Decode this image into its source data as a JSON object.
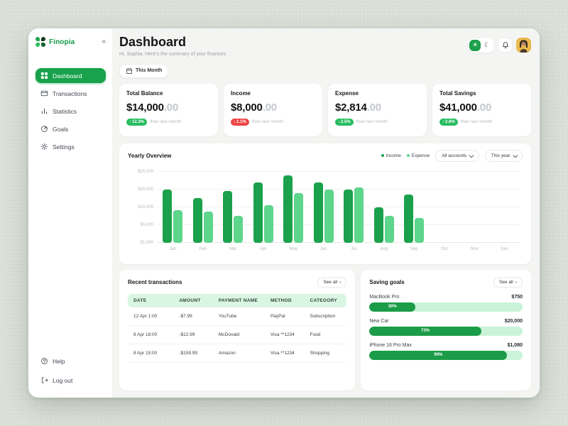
{
  "brand": {
    "name": "Finopia"
  },
  "icons": {
    "collapse": "«",
    "sun": "☀",
    "moon": "☾",
    "see_all_arrow": "›"
  },
  "sidebar": {
    "items": [
      {
        "label": "Dashboard",
        "active": true
      },
      {
        "label": "Transactions",
        "active": false
      },
      {
        "label": "Statistics",
        "active": false
      },
      {
        "label": "Goals",
        "active": false
      },
      {
        "label": "Settings",
        "active": false
      }
    ],
    "footer_items": [
      {
        "label": "Help"
      },
      {
        "label": "Log out"
      }
    ]
  },
  "header": {
    "title": "Dashboard",
    "subtitle": "Hi, Sophia. Here's the summary of your finances.",
    "period_button": "This Month"
  },
  "stats": [
    {
      "label": "Total Balance",
      "value_main": "$14,000",
      "value_cents": ".00",
      "delta_arrow": "↑",
      "delta": "12.3%",
      "delta_color": "green",
      "compare": "than last month"
    },
    {
      "label": "Income",
      "value_main": "$8,000",
      "value_cents": ".00",
      "delta_arrow": "↓",
      "delta": "1.1%",
      "delta_color": "red",
      "compare": "than last month"
    },
    {
      "label": "Expense",
      "value_main": "$2,814",
      "value_cents": ".00",
      "delta_arrow": "↓",
      "delta": "2.5%",
      "delta_color": "green",
      "compare": "than last month"
    },
    {
      "label": "Total Savings",
      "value_main": "$41,000",
      "value_cents": ".00",
      "delta_arrow": "↑",
      "delta": "2.8%",
      "delta_color": "green",
      "compare": "than last month"
    }
  ],
  "chart": {
    "title": "Yearly Overview",
    "legend": [
      {
        "label": "Income",
        "color": "#1ba14b"
      },
      {
        "label": "Expense",
        "color": "#5dd58b"
      }
    ],
    "filters": [
      "All accounts",
      "This year"
    ]
  },
  "chart_data": {
    "type": "bar",
    "title": "Yearly Overview",
    "categories": [
      "Jan",
      "Feb",
      "Mar",
      "Apr",
      "May",
      "Jun",
      "Jul",
      "Aug",
      "Sep",
      "Oct",
      "Nov",
      "Dec"
    ],
    "series": [
      {
        "name": "Income",
        "color": "#1ba14b",
        "values": [
          20000,
          17500,
          19500,
          22000,
          24000,
          22000,
          20000,
          15000,
          18500,
          null,
          null,
          null
        ]
      },
      {
        "name": "Expense",
        "color": "#5dd58b",
        "values": [
          13500,
          12500,
          10000,
          15500,
          19000,
          20000,
          20500,
          10000,
          9000,
          null,
          null,
          null
        ]
      }
    ],
    "y_ticks": [
      "$25,000",
      "$20,000",
      "$15,000",
      "$5,000",
      "$1,000"
    ],
    "y_tick_values": [
      25000,
      20000,
      15000,
      5000,
      1000
    ],
    "grid": true,
    "legend_position": "top-right"
  },
  "transactions": {
    "title": "Recent transactions",
    "see_all": "See all",
    "columns": [
      "DATE",
      "AMOUNT",
      "PAYMENT NAME",
      "METHOD",
      "CATEGORY"
    ],
    "rows": [
      {
        "date": "12 Apr 1:00",
        "amount": "-$7.99",
        "payment_name": "YouTube",
        "method": "PayPal",
        "category": "Subscription"
      },
      {
        "date": "8 Apr 18:00",
        "amount": "-$12.99",
        "payment_name": "McDonald",
        "method": "Visa **1234",
        "category": "Food"
      },
      {
        "date": "8 Apr 15:00",
        "amount": "-$159.99",
        "payment_name": "Amazon",
        "method": "Visa **1234",
        "category": "Shopping"
      }
    ]
  },
  "goals": {
    "title": "Saving goals",
    "see_all": "See all",
    "items": [
      {
        "name": "MacBook Pro",
        "amount": "$750",
        "percent": 30
      },
      {
        "name": "New Car",
        "amount": "$20,000",
        "percent": 73
      },
      {
        "name": "iPhone 16 Pro Max",
        "amount": "$1,080",
        "percent": 90
      }
    ]
  },
  "colors": {
    "primary_green": "#17a24b",
    "bar_income": "#1ba14b",
    "bar_expense": "#5dd58b",
    "badge_green": "#27bd60",
    "badge_red": "#ee4545",
    "table_header_bg": "#d9f6e3",
    "progress_track": "#cbf3d9",
    "progress_fill": "#1b9c48",
    "avatar_bg": "#e9b94d"
  }
}
